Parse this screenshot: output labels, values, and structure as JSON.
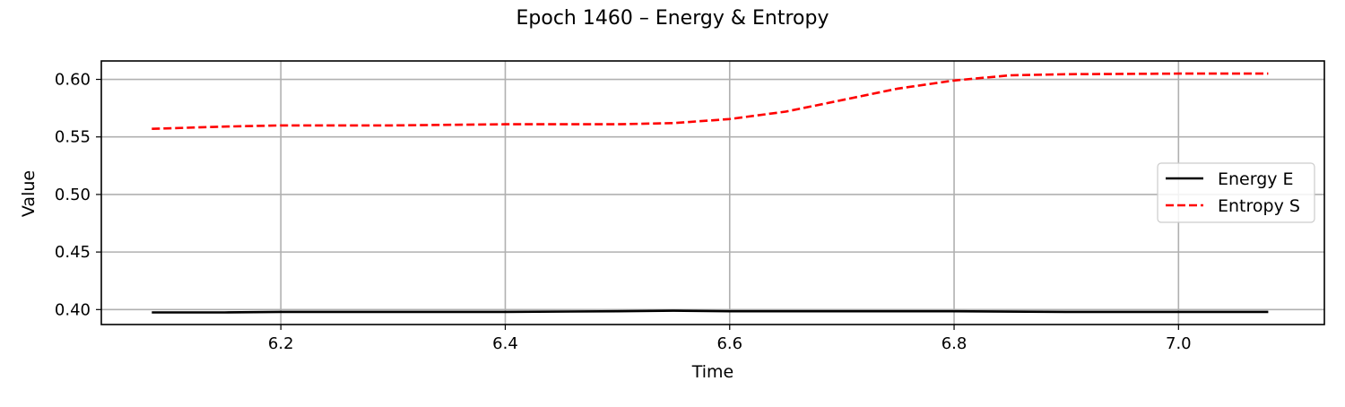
{
  "chart_data": {
    "type": "line",
    "title": "Epoch 1460 – Energy & Entropy",
    "xlabel": "Time",
    "ylabel": "Value",
    "xlim": [
      6.04,
      7.13
    ],
    "ylim": [
      0.387,
      0.616
    ],
    "xticks": [
      6.2,
      6.4,
      6.6,
      6.8,
      7.0
    ],
    "xtick_labels": [
      "6.2",
      "6.4",
      "6.6",
      "6.8",
      "7.0"
    ],
    "yticks": [
      0.4,
      0.45,
      0.5,
      0.55,
      0.6
    ],
    "ytick_labels": [
      "0.40",
      "0.45",
      "0.50",
      "0.55",
      "0.60"
    ],
    "grid": true,
    "legend_position": "right",
    "series": [
      {
        "name": "Energy E",
        "color": "#000000",
        "style": "solid",
        "x": [
          6.085,
          6.15,
          6.2,
          6.3,
          6.4,
          6.5,
          6.55,
          6.6,
          6.7,
          6.8,
          6.9,
          7.0,
          7.08
        ],
        "y": [
          0.3975,
          0.3975,
          0.398,
          0.398,
          0.398,
          0.3985,
          0.399,
          0.3985,
          0.3985,
          0.3985,
          0.398,
          0.398,
          0.398
        ]
      },
      {
        "name": "Entropy S",
        "color": "#ff0000",
        "style": "dashed",
        "x": [
          6.085,
          6.15,
          6.2,
          6.3,
          6.4,
          6.5,
          6.55,
          6.6,
          6.65,
          6.7,
          6.75,
          6.8,
          6.85,
          6.9,
          7.0,
          7.08
        ],
        "y": [
          0.557,
          0.559,
          0.56,
          0.56,
          0.561,
          0.561,
          0.562,
          0.5655,
          0.572,
          0.582,
          0.592,
          0.599,
          0.6035,
          0.6045,
          0.605,
          0.605
        ]
      }
    ]
  }
}
